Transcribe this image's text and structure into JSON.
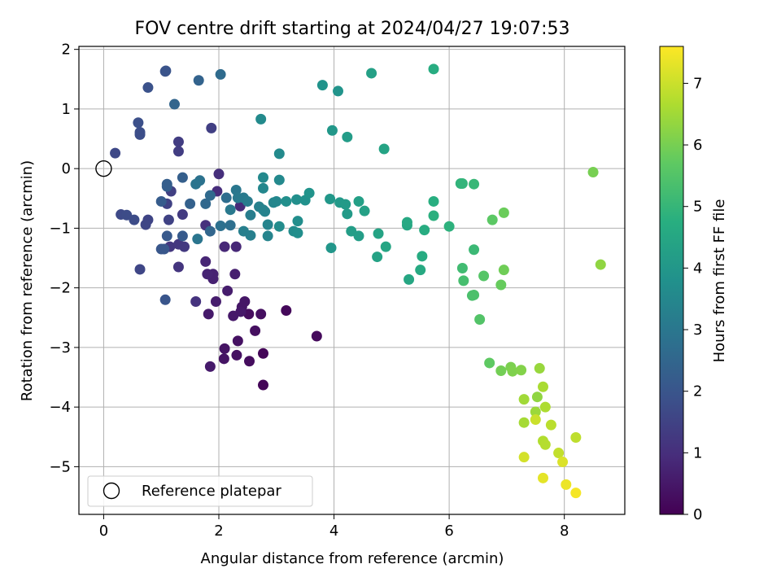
{
  "chart_data": {
    "type": "scatter",
    "title": "FOV centre drift starting at 2024/04/27 19:07:53",
    "xlabel": "Angular distance from reference (arcmin)",
    "ylabel": "Rotation from reference (arcmin)",
    "xlim": [
      -0.43,
      9.05
    ],
    "ylim": [
      -5.8,
      2.05
    ],
    "xticks": [
      0,
      2,
      4,
      6,
      8
    ],
    "yticks": [
      2,
      1,
      0,
      -1,
      -2,
      -3,
      -4,
      -5
    ],
    "grid": true,
    "legend": {
      "placement": "lower-left",
      "entries": [
        "Reference platepar"
      ]
    },
    "colormap": "viridis",
    "colorbar": {
      "label": "Hours from first FF file",
      "range": [
        0,
        7.6
      ],
      "ticks": [
        0,
        1,
        2,
        3,
        4,
        5,
        6,
        7
      ]
    },
    "reference_point": {
      "name": "Reference platepar",
      "x": 0,
      "y": 0
    },
    "series": [
      {
        "points": [
          {
            "x": 2.77,
            "y": -3.63,
            "c": 0.1
          },
          {
            "x": 2.77,
            "y": -3.1,
            "c": 0.1
          },
          {
            "x": 3.17,
            "y": -2.38,
            "c": 0.15
          },
          {
            "x": 3.7,
            "y": -2.81,
            "c": 0.2
          },
          {
            "x": 2.53,
            "y": -3.23,
            "c": 0.25
          },
          {
            "x": 2.52,
            "y": -2.44,
            "c": 0.25
          },
          {
            "x": 2.73,
            "y": -2.44,
            "c": 0.3
          },
          {
            "x": 2.63,
            "y": -2.72,
            "c": 0.3
          },
          {
            "x": 2.33,
            "y": -2.89,
            "c": 0.35
          },
          {
            "x": 2.31,
            "y": -3.13,
            "c": 0.35
          },
          {
            "x": 2.1,
            "y": -3.02,
            "c": 0.4
          },
          {
            "x": 2.09,
            "y": -3.19,
            "c": 0.4
          },
          {
            "x": 2.45,
            "y": -2.23,
            "c": 0.45
          },
          {
            "x": 2.4,
            "y": -2.32,
            "c": 0.45
          },
          {
            "x": 2.38,
            "y": -2.4,
            "c": 0.5
          },
          {
            "x": 2.25,
            "y": -2.47,
            "c": 0.5
          },
          {
            "x": 1.85,
            "y": -3.32,
            "c": 0.55
          },
          {
            "x": 1.82,
            "y": -2.44,
            "c": 0.55
          },
          {
            "x": 1.95,
            "y": -2.23,
            "c": 0.6
          },
          {
            "x": 2.15,
            "y": -2.05,
            "c": 0.6
          },
          {
            "x": 2.28,
            "y": -1.77,
            "c": 0.65
          },
          {
            "x": 1.9,
            "y": -1.85,
            "c": 0.7
          },
          {
            "x": 1.9,
            "y": -1.77,
            "c": 0.7
          },
          {
            "x": 1.8,
            "y": -1.77,
            "c": 0.75
          },
          {
            "x": 1.77,
            "y": -1.56,
            "c": 0.8
          },
          {
            "x": 2.1,
            "y": -1.31,
            "c": 0.85
          },
          {
            "x": 2.3,
            "y": -1.31,
            "c": 0.85
          },
          {
            "x": 2.37,
            "y": -0.63,
            "c": 0.9
          },
          {
            "x": 1.97,
            "y": -0.38,
            "c": 0.95
          },
          {
            "x": 2.0,
            "y": -0.09,
            "c": 1.0
          },
          {
            "x": 1.77,
            "y": -0.95,
            "c": 1.05
          },
          {
            "x": 1.6,
            "y": -2.23,
            "c": 1.1
          },
          {
            "x": 1.3,
            "y": -1.65,
            "c": 1.15
          },
          {
            "x": 1.15,
            "y": -1.31,
            "c": 1.2
          },
          {
            "x": 1.3,
            "y": -1.27,
            "c": 1.2
          },
          {
            "x": 1.4,
            "y": -1.31,
            "c": 1.25
          },
          {
            "x": 1.37,
            "y": -0.77,
            "c": 1.3
          },
          {
            "x": 1.3,
            "y": 0.29,
            "c": 1.35
          },
          {
            "x": 1.3,
            "y": 0.45,
            "c": 1.35
          },
          {
            "x": 1.87,
            "y": 0.68,
            "c": 1.4
          },
          {
            "x": 1.17,
            "y": -0.38,
            "c": 1.45
          },
          {
            "x": 1.1,
            "y": -0.59,
            "c": 1.5
          },
          {
            "x": 1.13,
            "y": -0.86,
            "c": 1.5
          },
          {
            "x": 0.77,
            "y": -0.86,
            "c": 1.55
          },
          {
            "x": 0.73,
            "y": -0.94,
            "c": 1.6
          },
          {
            "x": 0.63,
            "y": -1.69,
            "c": 1.6
          },
          {
            "x": 0.2,
            "y": 0.26,
            "c": 1.65
          },
          {
            "x": 0.3,
            "y": -0.77,
            "c": 1.7
          },
          {
            "x": 0.4,
            "y": -0.78,
            "c": 1.75
          },
          {
            "x": 0.53,
            "y": -0.86,
            "c": 1.75
          },
          {
            "x": 0.63,
            "y": 0.57,
            "c": 1.8
          },
          {
            "x": 0.63,
            "y": 0.61,
            "c": 1.8
          },
          {
            "x": 0.6,
            "y": 0.77,
            "c": 1.85
          },
          {
            "x": 0.77,
            "y": 1.36,
            "c": 1.9
          },
          {
            "x": 1.07,
            "y": 1.63,
            "c": 1.95
          },
          {
            "x": 1.08,
            "y": 1.64,
            "c": 1.95
          },
          {
            "x": 1.07,
            "y": -2.2,
            "c": 2.0
          },
          {
            "x": 1.0,
            "y": -1.35,
            "c": 2.05
          },
          {
            "x": 1.05,
            "y": -1.35,
            "c": 2.05
          },
          {
            "x": 1.1,
            "y": -1.13,
            "c": 2.1
          },
          {
            "x": 1.37,
            "y": -1.13,
            "c": 2.15
          },
          {
            "x": 1.0,
            "y": -0.55,
            "c": 2.2
          },
          {
            "x": 1.1,
            "y": -0.26,
            "c": 2.25
          },
          {
            "x": 1.1,
            "y": -0.3,
            "c": 2.25
          },
          {
            "x": 1.37,
            "y": -0.15,
            "c": 2.3
          },
          {
            "x": 1.5,
            "y": -0.59,
            "c": 2.35
          },
          {
            "x": 1.65,
            "y": 1.48,
            "c": 2.4
          },
          {
            "x": 1.23,
            "y": 1.08,
            "c": 2.45
          },
          {
            "x": 1.85,
            "y": -1.05,
            "c": 2.5
          },
          {
            "x": 1.77,
            "y": -0.59,
            "c": 2.55
          },
          {
            "x": 1.85,
            "y": -0.45,
            "c": 2.6
          },
          {
            "x": 2.03,
            "y": 1.58,
            "c": 2.65
          },
          {
            "x": 2.13,
            "y": -0.49,
            "c": 2.7
          },
          {
            "x": 2.2,
            "y": -0.95,
            "c": 2.75
          },
          {
            "x": 2.03,
            "y": -0.96,
            "c": 2.8
          },
          {
            "x": 1.67,
            "y": -0.2,
            "c": 2.85
          },
          {
            "x": 1.6,
            "y": -0.26,
            "c": 2.9
          },
          {
            "x": 1.63,
            "y": -1.18,
            "c": 2.95
          },
          {
            "x": 2.3,
            "y": -0.36,
            "c": 3.0
          },
          {
            "x": 2.33,
            "y": -0.49,
            "c": 3.05
          },
          {
            "x": 2.2,
            "y": -0.69,
            "c": 3.05
          },
          {
            "x": 2.43,
            "y": -0.49,
            "c": 3.1
          },
          {
            "x": 2.5,
            "y": -0.55,
            "c": 3.15
          },
          {
            "x": 2.55,
            "y": -0.78,
            "c": 3.2
          },
          {
            "x": 2.43,
            "y": -1.05,
            "c": 3.25
          },
          {
            "x": 2.55,
            "y": -1.12,
            "c": 3.25
          },
          {
            "x": 2.7,
            "y": -0.64,
            "c": 3.3
          },
          {
            "x": 2.77,
            "y": -0.69,
            "c": 3.35
          },
          {
            "x": 2.8,
            "y": -0.72,
            "c": 3.35
          },
          {
            "x": 2.85,
            "y": -0.94,
            "c": 3.4
          },
          {
            "x": 2.85,
            "y": -1.13,
            "c": 3.4
          },
          {
            "x": 2.95,
            "y": -0.57,
            "c": 3.45
          },
          {
            "x": 3.0,
            "y": -0.55,
            "c": 3.5
          },
          {
            "x": 2.77,
            "y": -0.33,
            "c": 3.5
          },
          {
            "x": 2.77,
            "y": -0.15,
            "c": 3.55
          },
          {
            "x": 3.05,
            "y": -0.19,
            "c": 3.55
          },
          {
            "x": 2.73,
            "y": 0.83,
            "c": 3.6
          },
          {
            "x": 3.05,
            "y": 0.25,
            "c": 3.6
          },
          {
            "x": 3.05,
            "y": -0.97,
            "c": 3.65
          },
          {
            "x": 3.3,
            "y": -1.05,
            "c": 3.65
          },
          {
            "x": 3.37,
            "y": -1.08,
            "c": 3.7
          },
          {
            "x": 3.37,
            "y": -0.88,
            "c": 3.7
          },
          {
            "x": 3.17,
            "y": -0.55,
            "c": 3.75
          },
          {
            "x": 3.35,
            "y": -0.52,
            "c": 3.75
          },
          {
            "x": 3.5,
            "y": -0.53,
            "c": 3.8
          },
          {
            "x": 3.57,
            "y": -0.41,
            "c": 3.85
          },
          {
            "x": 3.8,
            "y": 1.4,
            "c": 3.85
          },
          {
            "x": 4.07,
            "y": 1.3,
            "c": 3.9
          },
          {
            "x": 3.95,
            "y": -1.33,
            "c": 3.95
          },
          {
            "x": 3.93,
            "y": -0.51,
            "c": 4.0
          },
          {
            "x": 3.97,
            "y": 0.64,
            "c": 4.0
          },
          {
            "x": 4.1,
            "y": -0.57,
            "c": 4.05
          },
          {
            "x": 4.2,
            "y": -0.6,
            "c": 4.1
          },
          {
            "x": 4.23,
            "y": -0.76,
            "c": 4.1
          },
          {
            "x": 4.23,
            "y": 0.53,
            "c": 4.15
          },
          {
            "x": 4.3,
            "y": -1.05,
            "c": 4.2
          },
          {
            "x": 4.43,
            "y": -1.13,
            "c": 4.2
          },
          {
            "x": 4.43,
            "y": -0.55,
            "c": 4.25
          },
          {
            "x": 4.53,
            "y": -0.71,
            "c": 4.3
          },
          {
            "x": 4.65,
            "y": 1.6,
            "c": 4.3
          },
          {
            "x": 4.75,
            "y": -1.48,
            "c": 4.35
          },
          {
            "x": 4.77,
            "y": -1.09,
            "c": 4.4
          },
          {
            "x": 4.87,
            "y": 0.33,
            "c": 4.4
          },
          {
            "x": 4.9,
            "y": -1.31,
            "c": 4.45
          },
          {
            "x": 5.3,
            "y": -1.86,
            "c": 4.5
          },
          {
            "x": 5.27,
            "y": -0.95,
            "c": 4.5
          },
          {
            "x": 5.27,
            "y": -0.9,
            "c": 4.55
          },
          {
            "x": 5.5,
            "y": -1.7,
            "c": 4.6
          },
          {
            "x": 5.53,
            "y": -1.47,
            "c": 4.65
          },
          {
            "x": 5.57,
            "y": -1.03,
            "c": 4.7
          },
          {
            "x": 5.73,
            "y": 1.67,
            "c": 4.7
          },
          {
            "x": 5.73,
            "y": -0.55,
            "c": 4.75
          },
          {
            "x": 5.73,
            "y": -0.79,
            "c": 4.8
          },
          {
            "x": 6.0,
            "y": -0.97,
            "c": 4.85
          },
          {
            "x": 6.2,
            "y": -0.25,
            "c": 4.9
          },
          {
            "x": 6.23,
            "y": -0.25,
            "c": 4.95
          },
          {
            "x": 6.43,
            "y": -0.26,
            "c": 5.05
          },
          {
            "x": 6.43,
            "y": -1.36,
            "c": 5.1
          },
          {
            "x": 6.23,
            "y": -1.67,
            "c": 5.2
          },
          {
            "x": 6.25,
            "y": -1.88,
            "c": 5.3
          },
          {
            "x": 6.4,
            "y": -2.13,
            "c": 5.35
          },
          {
            "x": 6.43,
            "y": -2.12,
            "c": 5.4
          },
          {
            "x": 6.53,
            "y": -2.53,
            "c": 5.5
          },
          {
            "x": 6.6,
            "y": -1.8,
            "c": 5.55
          },
          {
            "x": 6.75,
            "y": -0.86,
            "c": 5.65
          },
          {
            "x": 6.7,
            "y": -3.26,
            "c": 5.7
          },
          {
            "x": 6.9,
            "y": -1.95,
            "c": 5.8
          },
          {
            "x": 6.95,
            "y": -0.74,
            "c": 5.85
          },
          {
            "x": 6.95,
            "y": -1.7,
            "c": 5.9
          },
          {
            "x": 6.9,
            "y": -3.39,
            "c": 5.95
          },
          {
            "x": 7.07,
            "y": -3.33,
            "c": 6.05
          },
          {
            "x": 7.1,
            "y": -3.4,
            "c": 6.1
          },
          {
            "x": 7.25,
            "y": -3.38,
            "c": 6.15
          },
          {
            "x": 8.5,
            "y": -0.06,
            "c": 6.0
          },
          {
            "x": 8.63,
            "y": -1.61,
            "c": 6.3
          },
          {
            "x": 7.53,
            "y": -3.83,
            "c": 6.3
          },
          {
            "x": 7.57,
            "y": -3.35,
            "c": 6.4
          },
          {
            "x": 7.5,
            "y": -4.08,
            "c": 6.45
          },
          {
            "x": 7.3,
            "y": -3.87,
            "c": 6.5
          },
          {
            "x": 7.3,
            "y": -4.26,
            "c": 6.55
          },
          {
            "x": 7.63,
            "y": -3.66,
            "c": 6.6
          },
          {
            "x": 7.67,
            "y": -4.0,
            "c": 6.65
          },
          {
            "x": 7.63,
            "y": -4.57,
            "c": 6.7
          },
          {
            "x": 7.67,
            "y": -4.63,
            "c": 6.75
          },
          {
            "x": 7.77,
            "y": -4.3,
            "c": 6.8
          },
          {
            "x": 8.2,
            "y": -4.51,
            "c": 6.85
          },
          {
            "x": 7.9,
            "y": -4.77,
            "c": 6.9
          },
          {
            "x": 7.5,
            "y": -4.21,
            "c": 7.0
          },
          {
            "x": 7.3,
            "y": -4.84,
            "c": 7.1
          },
          {
            "x": 7.97,
            "y": -4.92,
            "c": 7.2
          },
          {
            "x": 7.63,
            "y": -5.19,
            "c": 7.3
          },
          {
            "x": 8.03,
            "y": -5.3,
            "c": 7.4
          },
          {
            "x": 8.2,
            "y": -5.44,
            "c": 7.5
          }
        ]
      }
    ]
  }
}
